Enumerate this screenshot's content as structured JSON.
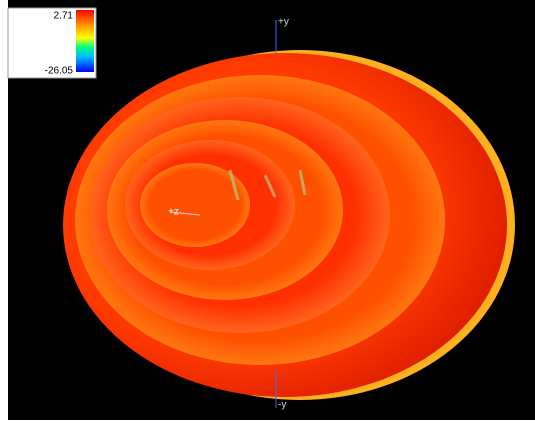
{
  "colorbar": {
    "max": 2.71,
    "min": -26.05
  },
  "axes": {
    "top": "+y",
    "bottom": "-y",
    "center": "+z"
  }
}
